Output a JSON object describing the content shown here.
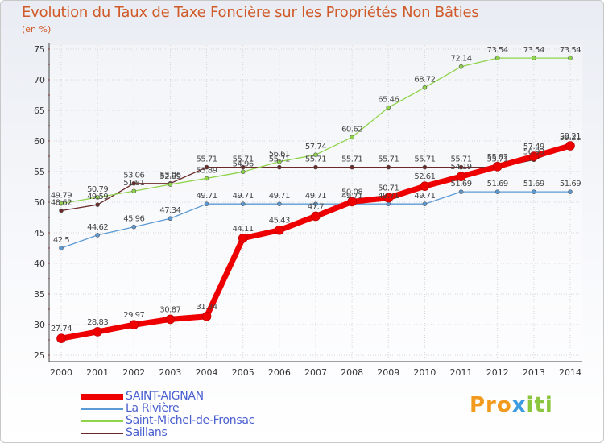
{
  "title": "Evolution du Taux de Taxe Foncière sur les Propriétés Non Bâties",
  "subtitle": "(en %)",
  "logo": {
    "p1": "Pro",
    "p2": "x",
    "p3": "iti"
  },
  "chart_data": {
    "type": "line",
    "x": [
      2000,
      2001,
      2002,
      2003,
      2004,
      2005,
      2006,
      2007,
      2008,
      2009,
      2010,
      2011,
      2012,
      2013,
      2014
    ],
    "ylim": [
      25,
      75
    ],
    "yticks": [
      25,
      30,
      35,
      40,
      45,
      50,
      55,
      60,
      65,
      70,
      75
    ],
    "grid": true,
    "legend_position": "bottom-left",
    "series": [
      {
        "name": "Saillans",
        "color": "#6b2a2a",
        "width": 1.3,
        "marker": 2.5,
        "values": [
          48.62,
          49.59,
          53.06,
          53.06,
          55.71,
          55.71,
          55.71,
          55.71,
          55.71,
          55.71,
          55.71,
          55.71,
          55.71,
          56.93,
          59.21
        ],
        "labels": [
          "48.62",
          "49.59",
          "53.06",
          "53.06",
          "55.71",
          "55.71",
          "55.71",
          "55.71",
          "55.71",
          "55.71",
          "55.71",
          "55.71",
          "55.71",
          "56.93",
          "59.21"
        ]
      },
      {
        "name": "Saint-Michel-de-Fronsac",
        "color": "#8ed34a",
        "width": 1.3,
        "marker": 2.5,
        "values": [
          49.79,
          50.79,
          51.81,
          52.89,
          53.89,
          54.96,
          56.61,
          57.74,
          60.62,
          65.46,
          68.72,
          72.14,
          73.54,
          73.54,
          73.54
        ],
        "labels": [
          "49.79",
          "50.79",
          "51.81",
          "52.89",
          "53.89",
          "54.96",
          "56.61",
          "57.74",
          "60.62",
          "65.46",
          "68.72",
          "72.14",
          "73.54",
          "73.54",
          "73.54"
        ]
      },
      {
        "name": "La Rivière",
        "color": "#5b9ad5",
        "width": 1.3,
        "marker": 2.5,
        "values": [
          42.5,
          44.62,
          45.96,
          47.34,
          49.71,
          49.71,
          49.71,
          49.71,
          49.71,
          49.71,
          49.71,
          51.69,
          51.69,
          51.69,
          51.69
        ],
        "labels": [
          "42.5",
          "44.62",
          "45.96",
          "47.34",
          "49.71",
          "49.71",
          "49.71",
          "49.71",
          "49.71",
          "49.71",
          "49.71",
          "51.69",
          "51.69",
          "51.69",
          "51.69"
        ]
      },
      {
        "name": "SAINT-AIGNAN",
        "color": "#ee0000",
        "width": 7,
        "marker": 5.5,
        "values": [
          27.74,
          28.83,
          29.97,
          30.87,
          31.34,
          44.11,
          45.43,
          47.7,
          50.08,
          50.71,
          52.61,
          54.19,
          55.82,
          57.49,
          59.21
        ],
        "labels": [
          "27.74",
          "28.83",
          "29.97",
          "30.87",
          "31.34",
          "44.11",
          "45.43",
          "47.7",
          "50.08",
          "50.71",
          "52.61",
          "54.19",
          "55.82",
          "57.49",
          "59.21"
        ]
      }
    ],
    "legend": [
      {
        "name": "SAINT-AIGNAN",
        "color": "#ee0000",
        "thick": true
      },
      {
        "name": "La Rivière",
        "color": "#5b9ad5",
        "thick": false
      },
      {
        "name": "Saint-Michel-de-Fronsac",
        "color": "#8ed34a",
        "thick": false
      },
      {
        "name": "Saillans",
        "color": "#6b2a2a",
        "thick": false
      }
    ]
  }
}
